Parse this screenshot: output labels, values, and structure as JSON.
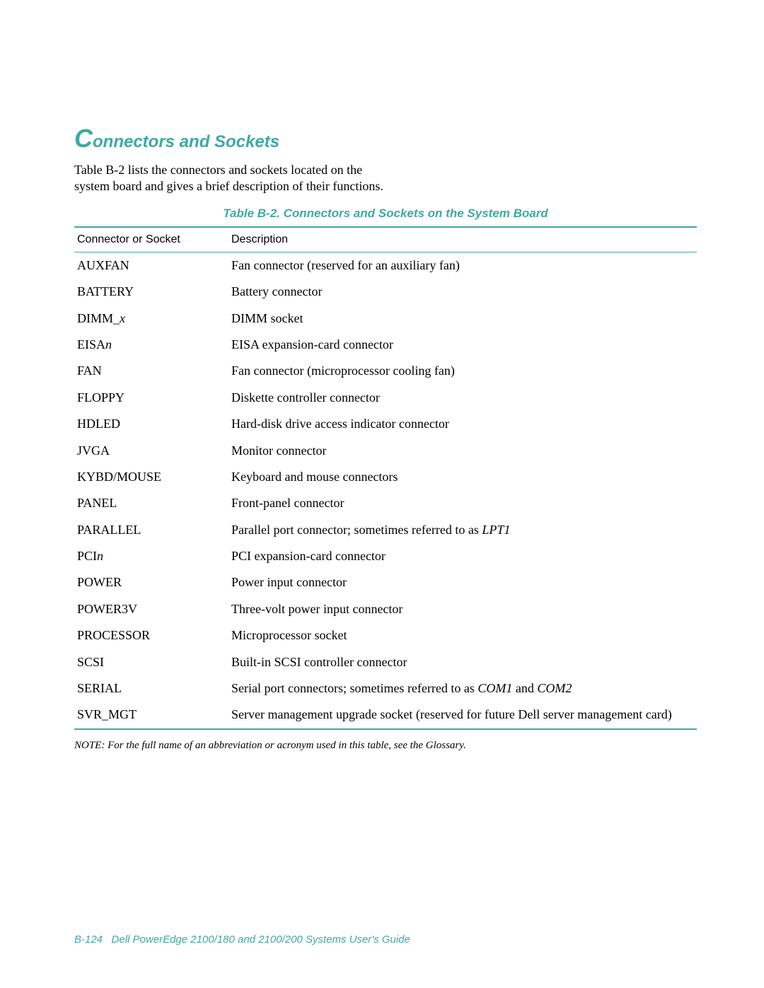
{
  "heading": {
    "dropcap": "C",
    "rest": "onnectors and Sockets"
  },
  "intro": "Table B-2 lists the connectors and sockets located on the system board and gives a brief description of their functions.",
  "table": {
    "caption": "Table B-2.  Connectors and Sockets on the System Board",
    "columns": [
      "Connector or Socket",
      "Description"
    ],
    "rows": [
      {
        "connector": [
          {
            "t": "AUXFAN"
          }
        ],
        "description": [
          {
            "t": "Fan connector (reserved for an auxiliary fan)"
          }
        ]
      },
      {
        "connector": [
          {
            "t": "BATTERY"
          }
        ],
        "description": [
          {
            "t": "Battery connector"
          }
        ]
      },
      {
        "connector": [
          {
            "t": "DIMM_"
          },
          {
            "t": "x",
            "i": true
          }
        ],
        "description": [
          {
            "t": "DIMM socket"
          }
        ]
      },
      {
        "connector": [
          {
            "t": "EISA"
          },
          {
            "t": "n",
            "i": true
          }
        ],
        "description": [
          {
            "t": "EISA expansion-card connector"
          }
        ]
      },
      {
        "connector": [
          {
            "t": "FAN"
          }
        ],
        "description": [
          {
            "t": "Fan connector (microprocessor cooling fan)"
          }
        ]
      },
      {
        "connector": [
          {
            "t": "FLOPPY"
          }
        ],
        "description": [
          {
            "t": "Diskette controller connector"
          }
        ]
      },
      {
        "connector": [
          {
            "t": "HDLED"
          }
        ],
        "description": [
          {
            "t": "Hard-disk drive access indicator connector"
          }
        ]
      },
      {
        "connector": [
          {
            "t": "JVGA"
          }
        ],
        "description": [
          {
            "t": "Monitor connector"
          }
        ]
      },
      {
        "connector": [
          {
            "t": "KYBD/MOUSE"
          }
        ],
        "description": [
          {
            "t": "Keyboard and mouse connectors"
          }
        ]
      },
      {
        "connector": [
          {
            "t": "PANEL"
          }
        ],
        "description": [
          {
            "t": "Front-panel connector"
          }
        ]
      },
      {
        "connector": [
          {
            "t": "PARALLEL"
          }
        ],
        "description": [
          {
            "t": "Parallel port connector; sometimes referred to as "
          },
          {
            "t": "LPT1",
            "i": true
          }
        ]
      },
      {
        "connector": [
          {
            "t": "PCI"
          },
          {
            "t": "n",
            "i": true
          }
        ],
        "description": [
          {
            "t": "PCI expansion-card connector"
          }
        ]
      },
      {
        "connector": [
          {
            "t": "POWER"
          }
        ],
        "description": [
          {
            "t": "Power input connector"
          }
        ]
      },
      {
        "connector": [
          {
            "t": "POWER3V"
          }
        ],
        "description": [
          {
            "t": "Three-volt power input connector"
          }
        ]
      },
      {
        "connector": [
          {
            "t": "PROCESSOR"
          }
        ],
        "description": [
          {
            "t": "Microprocessor socket"
          }
        ]
      },
      {
        "connector": [
          {
            "t": "SCSI"
          }
        ],
        "description": [
          {
            "t": "Built-in SCSI controller connector"
          }
        ]
      },
      {
        "connector": [
          {
            "t": "SERIAL"
          }
        ],
        "description": [
          {
            "t": "Serial port connectors; sometimes referred to as "
          },
          {
            "t": "COM1",
            "i": true
          },
          {
            "t": " and "
          },
          {
            "t": "COM2",
            "i": true
          }
        ]
      },
      {
        "connector": [
          {
            "t": "SVR_MGT"
          }
        ],
        "description": [
          {
            "t": "Server management upgrade socket (reserved for future Dell server management card)"
          }
        ]
      }
    ]
  },
  "note": "NOTE:   For the full name of an abbreviation or acronym used in this table, see the Glossary.",
  "footer": {
    "page": "B-124",
    "title": "Dell PowerEdge 2100/180 and 2100/200 Systems User's Guide"
  },
  "colors": {
    "accent": "#3fa9a2",
    "text": "#000000",
    "background": "#ffffff"
  }
}
